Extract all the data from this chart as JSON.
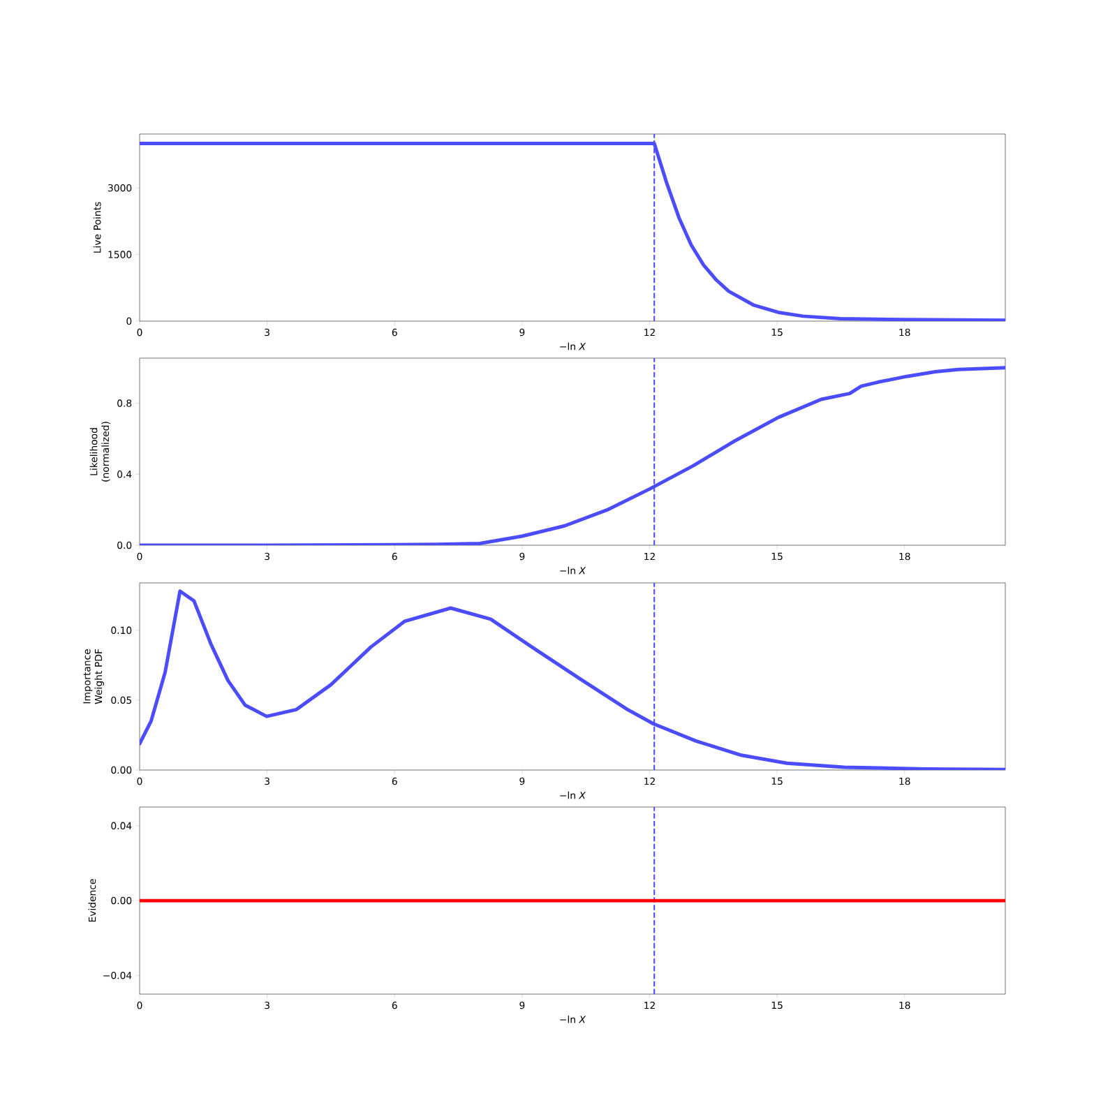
{
  "chart_data": [
    {
      "type": "line",
      "xlabel": "−ln *X*",
      "ylabel": "Live Points",
      "xlim": [
        0,
        20.37
      ],
      "ylim": [
        0,
        4213
      ],
      "xticks": [
        0,
        3,
        6,
        9,
        12,
        15,
        18
      ],
      "yticks": [
        0,
        1500,
        3000
      ],
      "series": [
        {
          "color": "#4c4cff",
          "x": [
            0,
            12.11,
            12.4,
            12.69,
            12.98,
            13.27,
            13.57,
            13.86,
            14.44,
            15.03,
            15.61,
            16.49,
            17.95,
            20.37
          ],
          "values": [
            4000,
            4000,
            3118,
            2331,
            1713,
            1264,
            927,
            674,
            365,
            197,
            112,
            56,
            34,
            20
          ]
        }
      ],
      "ref_lines": [
        {
          "axis": "x",
          "value": 12.11,
          "color": "#4c4cff",
          "line_style": "dashed"
        }
      ]
    },
    {
      "type": "line",
      "xlabel": "−ln *X*",
      "ylabel": "Likelihood (normalized)",
      "xlim": [
        0,
        20.37
      ],
      "ylim": [
        0,
        1.054
      ],
      "xticks": [
        0,
        3,
        6,
        9,
        12,
        15,
        18
      ],
      "yticks": [
        {
          "value": 0,
          "label": "0.0"
        },
        {
          "value": 0.4,
          "label": "0.4"
        },
        {
          "value": 0.8,
          "label": "0.8"
        }
      ],
      "series": [
        {
          "color": "#4c4cff",
          "x": [
            0,
            3,
            6,
            7,
            8,
            9,
            10,
            11,
            12.01,
            13.02,
            14.03,
            15.03,
            16.04,
            16.71,
            16.98,
            17.38,
            18.05,
            18.72,
            19.26,
            20.37
          ],
          "values": [
            0,
            0,
            0.003,
            0.005,
            0.01,
            0.051,
            0.109,
            0.199,
            0.318,
            0.447,
            0.591,
            0.72,
            0.822,
            0.855,
            0.896,
            0.919,
            0.951,
            0.977,
            0.99,
            1.0
          ]
        }
      ],
      "ref_lines": [
        {
          "axis": "x",
          "value": 12.11,
          "color": "#4c4cff",
          "line_style": "dashed"
        }
      ]
    },
    {
      "type": "line",
      "xlabel": "−ln *X*",
      "ylabel": "Importance Weight PDF",
      "xlim": [
        0,
        20.37
      ],
      "ylim": [
        0,
        0.1339
      ],
      "xticks": [
        0,
        3,
        6,
        9,
        12,
        15,
        18
      ],
      "yticks": [
        {
          "value": 0,
          "label": "0.00"
        },
        {
          "value": 0.05,
          "label": "0.05"
        },
        {
          "value": 0.1,
          "label": "0.10"
        }
      ],
      "series": [
        {
          "color": "#4c4cff",
          "x": [
            0,
            0.27,
            0.6,
            0.95,
            1.28,
            1.68,
            2.08,
            2.48,
            2.99,
            3.69,
            4.5,
            5.44,
            6.24,
            7.32,
            8.26,
            9.33,
            10.4,
            11.48,
            12.09,
            13.09,
            14.16,
            15.23,
            16.58,
            18.46,
            20.37
          ],
          "values": [
            0.0188,
            0.035,
            0.07,
            0.128,
            0.121,
            0.09,
            0.064,
            0.0465,
            0.0384,
            0.0433,
            0.061,
            0.088,
            0.1065,
            0.1159,
            0.108,
            0.086,
            0.0645,
            0.0433,
            0.0331,
            0.0208,
            0.0106,
            0.0049,
            0.002,
            0.0008,
            0.0004
          ]
        }
      ],
      "ref_lines": [
        {
          "axis": "x",
          "value": 12.11,
          "color": "#4c4cff",
          "line_style": "dashed"
        }
      ]
    },
    {
      "type": "line",
      "xlabel": "−ln *X*",
      "ylabel": "Evidence",
      "xlim": [
        0,
        20.37
      ],
      "ylim": [
        -0.05,
        0.05
      ],
      "xticks": [
        0,
        3,
        6,
        9,
        12,
        15,
        18
      ],
      "yticks": [
        {
          "value": -0.04,
          "label": "−0.04"
        },
        {
          "value": 0,
          "label": "0.00"
        },
        {
          "value": 0.04,
          "label": "0.04"
        }
      ],
      "series": [
        {
          "color": "#ff0000",
          "x": [
            0,
            20.37
          ],
          "values": [
            0,
            0
          ]
        }
      ],
      "ref_lines": [
        {
          "axis": "x",
          "value": 12.11,
          "color": "#4c4cff",
          "line_style": "dashed"
        }
      ]
    }
  ]
}
